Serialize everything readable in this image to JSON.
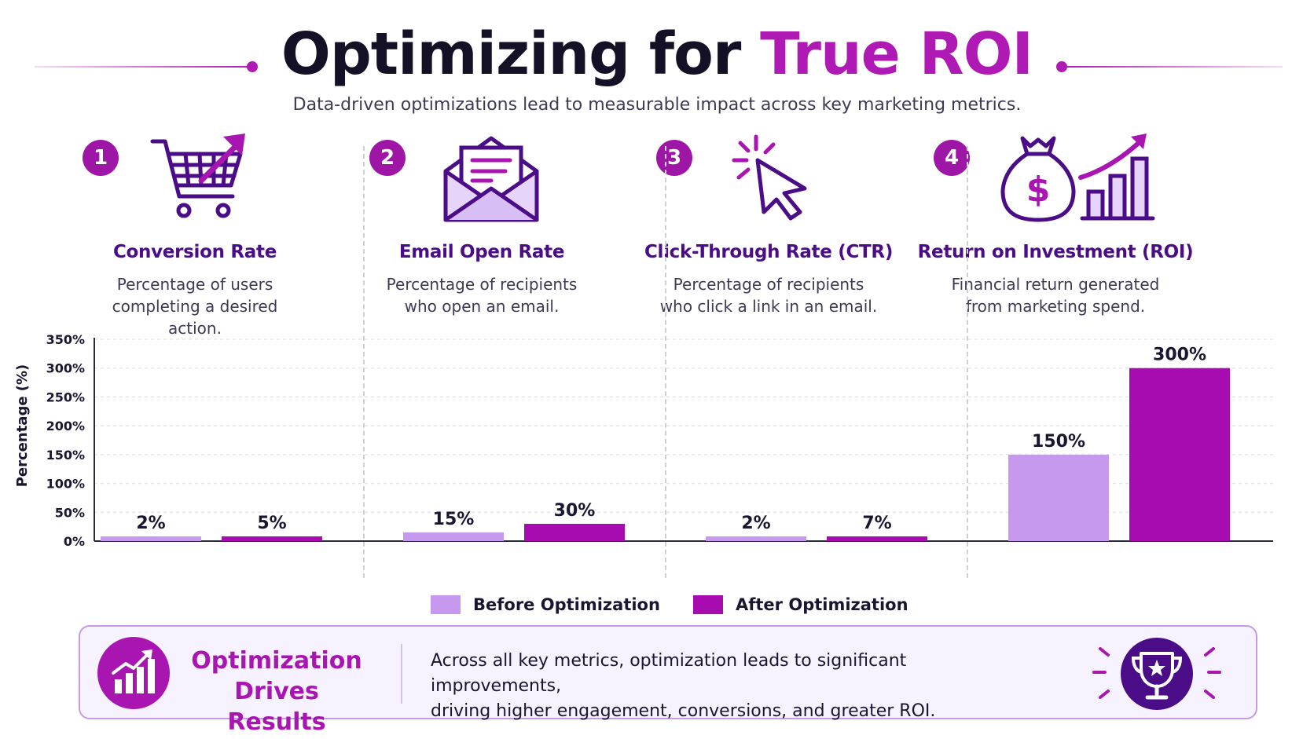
{
  "header": {
    "title_main": "Optimizing for",
    "title_accent": "True ROI",
    "subtitle": "Data-driven optimizations lead to measurable impact across key marketing metrics."
  },
  "metrics": [
    {
      "number": "1",
      "name": "Conversion Rate",
      "desc_line1": "Percentage of users",
      "desc_line2": "completing a desired action.",
      "icon": "shopping-cart-arrow-icon"
    },
    {
      "number": "2",
      "name": "Email Open Rate",
      "desc_line1": "Percentage of recipients",
      "desc_line2": "who open an email.",
      "icon": "envelope-icon"
    },
    {
      "number": "3",
      "name": "Click-Through Rate (CTR)",
      "desc_line1": "Percentage of recipients",
      "desc_line2": "who click a link in an email.",
      "icon": "cursor-click-icon"
    },
    {
      "number": "4",
      "name": "Return on Investment (ROI)",
      "desc_line1": "Financial return generated",
      "desc_line2": "from marketing spend.",
      "icon": "money-bag-growth-icon"
    }
  ],
  "chart_data": {
    "type": "bar",
    "categories": [
      "Conversion Rate",
      "Email Open Rate",
      "Click-Through Rate (CTR)",
      "Return on Investment (ROI)"
    ],
    "series": [
      {
        "name": "Before Optimization",
        "values": [
          2,
          15,
          2,
          150
        ],
        "labels": [
          "2%",
          "15%",
          "2%",
          "150%"
        ],
        "color": "#c698ee"
      },
      {
        "name": "After Optimization",
        "values": [
          5,
          30,
          7,
          300
        ],
        "labels": [
          "5%",
          "30%",
          "7%",
          "300%"
        ],
        "color": "#a60cb0"
      }
    ],
    "ylabel": "Percentage (%)",
    "ylim": [
      0,
      350
    ],
    "yticks": [
      0,
      50,
      100,
      150,
      200,
      250,
      300,
      350
    ],
    "ytick_labels": [
      "0%",
      "50%",
      "100%",
      "150%",
      "200%",
      "250%",
      "300%",
      "350%"
    ],
    "grid": true,
    "legend": "bottom-center"
  },
  "callout": {
    "heading_line1": "Optimization",
    "heading_line2": "Drives Results",
    "message_line1": "Across all key metrics, optimization leads to significant improvements,",
    "message_line2": "driving higher engagement, conversions, and greater ROI.",
    "left_icon": "bar-chart-growth-icon",
    "right_icon": "trophy-star-icon"
  },
  "colors": {
    "accent": "#b01ab4",
    "heading_purple": "#4a0c87",
    "before": "#c698ee",
    "after": "#a60cb0",
    "trophy_circle": "#4a0c87"
  }
}
